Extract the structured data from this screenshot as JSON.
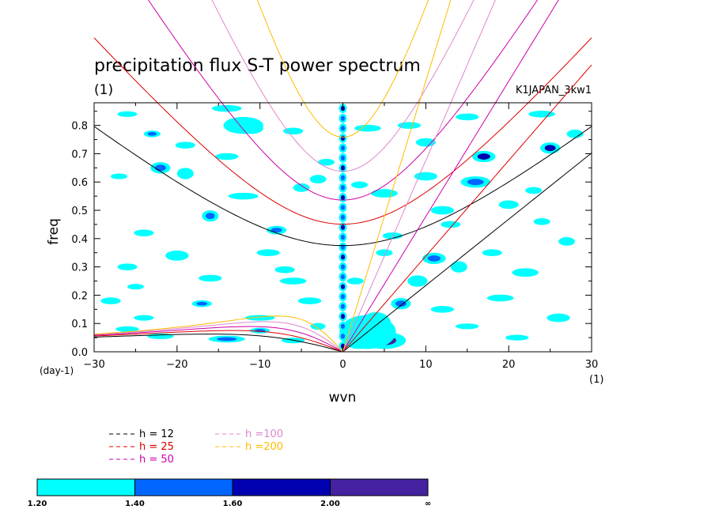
{
  "chart_data": {
    "type": "contour",
    "title": "precipitation flux S-T power spectrum",
    "subtitle": "(1)",
    "run_label": "K1JAPAN_3kw1",
    "xlabel": "wvn",
    "ylabel": "freq",
    "x_unit": "(1)",
    "y_unit": "(day-1)",
    "xlim": [
      -30,
      30
    ],
    "ylim": [
      0,
      0.88
    ],
    "x_ticks": [
      -30,
      -20,
      -10,
      0,
      10,
      20,
      30
    ],
    "x_tick_labels": [
      "−30",
      "−20",
      "−10",
      "0",
      "10",
      "20",
      "30"
    ],
    "y_ticks": [
      0,
      0.1,
      0.2,
      0.3,
      0.4,
      0.5,
      0.6,
      0.7,
      0.8
    ],
    "y_tick_labels": [
      "0.0",
      "0.1",
      "0.2",
      "0.3",
      "0.4",
      "0.5",
      "0.6",
      "0.7",
      "0.8"
    ],
    "dispersion_curves": [
      {
        "label": "h = 12",
        "h": 12,
        "color": "#000000"
      },
      {
        "label": "h = 25",
        "h": 25,
        "color": "#dd0000"
      },
      {
        "label": "h = 50",
        "h": 50,
        "color": "#cc00aa"
      },
      {
        "label": "h =100",
        "h": 100,
        "color": "#dd88cc"
      },
      {
        "label": "h =200",
        "h": 200,
        "color": "#ffbb00"
      }
    ],
    "colorbar": {
      "levels": [
        "1.20",
        "1.40",
        "1.60",
        "2.00",
        "∞"
      ],
      "colors": [
        "#00ffff",
        "#0066ff",
        "#0000b0",
        "#4422a0"
      ]
    },
    "shading_blobs": [
      [
        -22,
        0.055,
        1.6,
        0.01,
        0
      ],
      [
        -14,
        0.045,
        2.2,
        0.012,
        1
      ],
      [
        -6,
        0.04,
        1.4,
        0.01,
        0
      ],
      [
        -10,
        0.075,
        1.2,
        0.01,
        1
      ],
      [
        -26,
        0.08,
        1.4,
        0.01,
        0
      ],
      [
        -3,
        0.09,
        0.9,
        0.012,
        0
      ],
      [
        -11,
        0.79,
        1.4,
        0.02,
        2
      ],
      [
        -12,
        0.8,
        2.4,
        0.03,
        0
      ],
      [
        -22,
        0.65,
        1.2,
        0.02,
        1
      ],
      [
        -19,
        0.63,
        1.0,
        0.02,
        0
      ],
      [
        -20,
        0.34,
        1.4,
        0.018,
        0
      ],
      [
        -24,
        0.42,
        1.2,
        0.012,
        0
      ],
      [
        -16,
        0.48,
        1.0,
        0.02,
        1
      ],
      [
        -9,
        0.35,
        1.4,
        0.012,
        0
      ],
      [
        -8,
        0.43,
        1.2,
        0.015,
        1
      ],
      [
        -5,
        0.58,
        1.0,
        0.015,
        0
      ],
      [
        -3,
        0.61,
        1.0,
        0.015,
        0
      ],
      [
        -12,
        0.55,
        1.8,
        0.012,
        0
      ],
      [
        -27,
        0.62,
        1.0,
        0.01,
        0
      ],
      [
        -26,
        0.3,
        1.2,
        0.012,
        0
      ],
      [
        -16,
        0.26,
        1.4,
        0.012,
        0
      ],
      [
        -6,
        0.25,
        1.6,
        0.012,
        0
      ],
      [
        -17,
        0.17,
        1.2,
        0.012,
        1
      ],
      [
        -4,
        0.18,
        1.4,
        0.012,
        0
      ],
      [
        -7,
        0.29,
        1.2,
        0.012,
        0
      ],
      [
        -28,
        0.18,
        1.2,
        0.012,
        0
      ],
      [
        -25,
        0.23,
        1.0,
        0.01,
        0
      ],
      [
        -14,
        0.69,
        1.4,
        0.012,
        0
      ],
      [
        -19,
        0.73,
        1.2,
        0.012,
        0
      ],
      [
        -6,
        0.78,
        1.2,
        0.012,
        0
      ],
      [
        -26,
        0.84,
        1.2,
        0.01,
        0
      ],
      [
        -14,
        0.86,
        1.8,
        0.012,
        0
      ],
      [
        -2,
        0.67,
        1.0,
        0.012,
        0
      ],
      [
        -23,
        0.77,
        1.0,
        0.012,
        1
      ],
      [
        -10,
        0.12,
        1.8,
        0.01,
        0
      ],
      [
        -24,
        0.12,
        1.2,
        0.01,
        0
      ],
      [
        2,
        0.05,
        2.2,
        0.04,
        2
      ],
      [
        4,
        0.1,
        1.8,
        0.04,
        2
      ],
      [
        5,
        0.04,
        2.6,
        0.03,
        3
      ],
      [
        3,
        0.07,
        3.4,
        0.06,
        0
      ],
      [
        7,
        0.17,
        1.2,
        0.02,
        1
      ],
      [
        9,
        0.25,
        1.2,
        0.02,
        0
      ],
      [
        11,
        0.33,
        1.4,
        0.02,
        1
      ],
      [
        12,
        0.15,
        1.4,
        0.012,
        0
      ],
      [
        14,
        0.3,
        1.0,
        0.02,
        0
      ],
      [
        5,
        0.56,
        1.6,
        0.015,
        0
      ],
      [
        10,
        0.62,
        1.4,
        0.015,
        0
      ],
      [
        12,
        0.5,
        1.4,
        0.015,
        0
      ],
      [
        16,
        0.6,
        1.8,
        0.02,
        1
      ],
      [
        17,
        0.69,
        1.4,
        0.02,
        2
      ],
      [
        20,
        0.52,
        1.2,
        0.015,
        0
      ],
      [
        25,
        0.72,
        1.2,
        0.02,
        2
      ],
      [
        28,
        0.77,
        1.0,
        0.015,
        0
      ],
      [
        22,
        0.28,
        1.6,
        0.015,
        0
      ],
      [
        26,
        0.12,
        1.4,
        0.015,
        0
      ],
      [
        27,
        0.39,
        1.0,
        0.015,
        0
      ],
      [
        3,
        0.79,
        1.6,
        0.012,
        0
      ],
      [
        8,
        0.8,
        1.4,
        0.012,
        0
      ],
      [
        15,
        0.83,
        1.4,
        0.012,
        0
      ],
      [
        24,
        0.84,
        1.6,
        0.012,
        0
      ],
      [
        18,
        0.35,
        1.2,
        0.012,
        0
      ],
      [
        5,
        0.35,
        1.0,
        0.012,
        0
      ],
      [
        19,
        0.19,
        1.6,
        0.012,
        0
      ],
      [
        13,
        0.45,
        1.2,
        0.012,
        0
      ],
      [
        23,
        0.57,
        1.0,
        0.012,
        0
      ],
      [
        10,
        0.74,
        1.2,
        0.015,
        0
      ],
      [
        6,
        0.41,
        1.2,
        0.012,
        0
      ],
      [
        24,
        0.46,
        1.0,
        0.012,
        0
      ],
      [
        15,
        0.09,
        1.4,
        0.01,
        0
      ],
      [
        21,
        0.05,
        1.4,
        0.01,
        0
      ],
      [
        1.5,
        0.25,
        1.0,
        0.012,
        0
      ],
      [
        2,
        0.59,
        1.0,
        0.012,
        0
      ]
    ]
  }
}
